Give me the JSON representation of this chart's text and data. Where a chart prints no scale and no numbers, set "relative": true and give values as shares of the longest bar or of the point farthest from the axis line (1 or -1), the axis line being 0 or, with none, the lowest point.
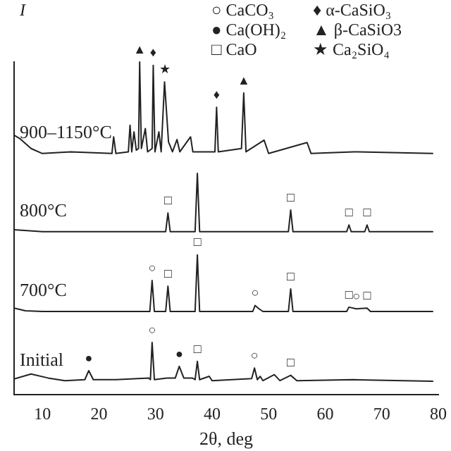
{
  "chart_data": {
    "type": "line",
    "relative": true,
    "xlabel": "2θ, deg",
    "ylabel": "I",
    "xlim": [
      5,
      80
    ],
    "xticks": [
      10,
      20,
      30,
      40,
      50,
      60,
      70,
      80
    ],
    "grid": false,
    "legend": false,
    "marker": "none",
    "line_style": "solid",
    "series": [
      {
        "name": "900–1150°C",
        "color": "#222222",
        "x": [
          5,
          6,
          8,
          10,
          15,
          22.3,
          22.6,
          23,
          25.2,
          25.5,
          25.8,
          26.2,
          26.6,
          27.0,
          27.2,
          27.5,
          28.2,
          28.6,
          29.4,
          29.6,
          29.9,
          30.6,
          31.0,
          31.6,
          32.3,
          33,
          33.8,
          34.3,
          36.2,
          36.6,
          40.5,
          40.8,
          41.1,
          45.2,
          45.6,
          46,
          49.2,
          50,
          56.8,
          57.5,
          65,
          79
        ],
        "values": [
          0.78,
          0.77,
          0.74,
          0.725,
          0.73,
          0.725,
          0.775,
          0.725,
          0.73,
          0.81,
          0.73,
          0.79,
          0.735,
          0.74,
          1.0,
          0.74,
          0.8,
          0.73,
          0.74,
          0.99,
          0.73,
          0.79,
          0.73,
          0.94,
          0.76,
          0.73,
          0.767,
          0.73,
          0.775,
          0.73,
          0.73,
          0.864,
          0.73,
          0.74,
          0.907,
          0.73,
          0.765,
          0.725,
          0.758,
          0.725,
          0.73,
          0.725
        ]
      },
      {
        "name": "800°C",
        "color": "#222222",
        "x": [
          5,
          10,
          31.8,
          32.2,
          32.6,
          37,
          37.4,
          37.8,
          53.5,
          53.9,
          54.3,
          63.8,
          64.2,
          64.6,
          67,
          67.4,
          67.8,
          79
        ],
        "values": [
          0.496,
          0.49,
          0.49,
          0.546,
          0.49,
          0.49,
          0.665,
          0.49,
          0.49,
          0.555,
          0.49,
          0.49,
          0.51,
          0.49,
          0.49,
          0.51,
          0.49,
          0.49
        ]
      },
      {
        "name": "700°C",
        "color": "#222222",
        "x": [
          5,
          7,
          10,
          29,
          29.4,
          29.8,
          31.8,
          32.2,
          32.6,
          37,
          37.4,
          37.8,
          47.2,
          47.6,
          48.3,
          49,
          53.5,
          53.9,
          54.3,
          63.8,
          64.2,
          65.5,
          67.4,
          68,
          79
        ],
        "values": [
          0.26,
          0.252,
          0.25,
          0.25,
          0.343,
          0.25,
          0.25,
          0.326,
          0.25,
          0.25,
          0.42,
          0.25,
          0.25,
          0.268,
          0.258,
          0.25,
          0.25,
          0.318,
          0.25,
          0.25,
          0.263,
          0.258,
          0.26,
          0.25,
          0.25
        ]
      },
      {
        "name": "Initial",
        "color": "#222222",
        "x": [
          5,
          8,
          11,
          14,
          17.5,
          18.2,
          19,
          23,
          28.8,
          29.1,
          29.4,
          29.8,
          32,
          33.5,
          34.2,
          35,
          36.5,
          37.0,
          37.4,
          37.8,
          39.5,
          40,
          47,
          47.5,
          48,
          48.5,
          49,
          51,
          52,
          53.9,
          55,
          65,
          79
        ],
        "values": [
          0.047,
          0.062,
          0.05,
          0.042,
          0.045,
          0.072,
          0.045,
          0.045,
          0.05,
          0.045,
          0.157,
          0.045,
          0.05,
          0.05,
          0.085,
          0.05,
          0.05,
          0.045,
          0.1,
          0.045,
          0.055,
          0.042,
          0.048,
          0.08,
          0.045,
          0.055,
          0.042,
          0.06,
          0.042,
          0.058,
          0.042,
          0.045,
          0.04
        ]
      }
    ],
    "annotations": [
      "○ CaCO₃",
      "♦ α-CaSiO₃",
      "● Ca(OH)₂",
      "▲ β-CaSiO3",
      "□ CaO",
      "★ Ca₂SiO₄",
      {
        "text": "▲",
        "x": 27.2,
        "y": 1.0
      },
      {
        "text": "♦",
        "x": 29.6,
        "y": 0.99
      },
      {
        "text": "★",
        "x": 31.6,
        "y": 0.94
      },
      {
        "text": "♦",
        "x": 40.8,
        "y": 0.864
      },
      {
        "text": "▲",
        "x": 45.6,
        "y": 0.907
      },
      {
        "text": "□",
        "x": 32.2,
        "y": 0.546
      },
      {
        "text": "□",
        "x": 53.9,
        "y": 0.555
      },
      {
        "text": "□",
        "x": 64.2,
        "y": 0.51
      },
      {
        "text": "□",
        "x": 67.4,
        "y": 0.51
      },
      {
        "text": "○",
        "x": 29.4,
        "y": 0.343
      },
      {
        "text": "□",
        "x": 32.2,
        "y": 0.326
      },
      {
        "text": "□",
        "x": 37.4,
        "y": 0.42
      },
      {
        "text": "○",
        "x": 47.6,
        "y": 0.268
      },
      {
        "text": "□",
        "x": 53.9,
        "y": 0.318
      },
      {
        "text": "□",
        "x": 64.2,
        "y": 0.263
      },
      {
        "text": "○",
        "x": 65.5,
        "y": 0.258
      },
      {
        "text": "□",
        "x": 67.4,
        "y": 0.26
      },
      {
        "text": "●",
        "x": 18.2,
        "y": 0.072
      },
      {
        "text": "○",
        "x": 29.4,
        "y": 0.157
      },
      {
        "text": "●",
        "x": 34.2,
        "y": 0.085
      },
      {
        "text": "□",
        "x": 37.4,
        "y": 0.1
      },
      {
        "text": "○",
        "x": 47.5,
        "y": 0.08
      },
      {
        "text": "□",
        "x": 53.9,
        "y": 0.058
      }
    ]
  }
}
